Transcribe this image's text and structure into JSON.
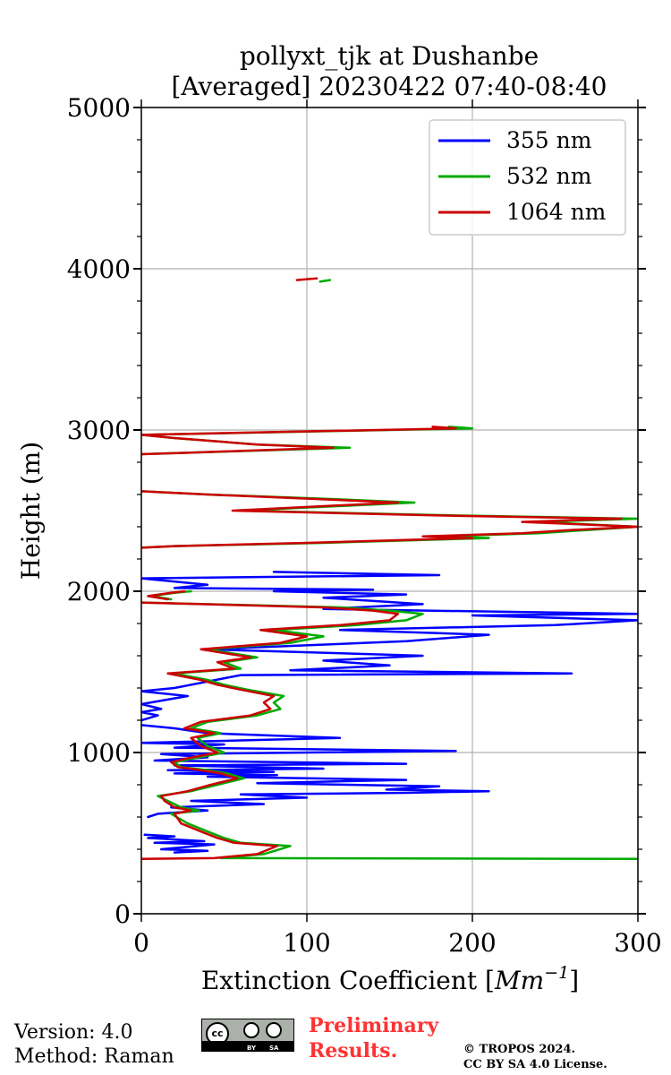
{
  "chart_data": {
    "type": "line",
    "title_line1": "pollyxt_tjk at Dushanbe",
    "title_line2": "[Averaged] 20230422 07:40-08:40",
    "xlabel_main": "Extinction Coefficient [",
    "xlabel_unit": "Mm",
    "xlabel_exp": "−1",
    "xlabel_end": "]",
    "ylabel": "Height (m)",
    "xlim": [
      0,
      300
    ],
    "ylim": [
      0,
      5000
    ],
    "xticks": [
      "0",
      "100",
      "200",
      "300"
    ],
    "yticks": [
      "0",
      "1000",
      "2000",
      "3000",
      "4000",
      "5000"
    ],
    "grid": true,
    "legend_position": "top-right",
    "series": [
      {
        "name": "355 nm",
        "color": "#0000ff",
        "segments": [
          [
            [
              20,
              380
            ],
            [
              40,
              390
            ],
            [
              12,
              400
            ],
            [
              44,
              430
            ],
            [
              8,
              440
            ],
            [
              38,
              450
            ],
            [
              4,
              470
            ],
            [
              20,
              480
            ],
            [
              2,
              490
            ]
          ],
          [
            [
              4,
              600
            ],
            [
              10,
              620
            ],
            [
              40,
              640
            ],
            [
              18,
              660
            ],
            [
              74,
              680
            ],
            [
              30,
              700
            ],
            [
              100,
              720
            ],
            [
              60,
              740
            ],
            [
              160,
              750
            ],
            [
              210,
              760
            ],
            [
              148,
              770
            ],
            [
              180,
              790
            ],
            [
              70,
              810
            ],
            [
              160,
              830
            ],
            [
              40,
              850
            ],
            [
              82,
              860
            ],
            [
              20,
              870
            ],
            [
              80,
              880
            ],
            [
              16,
              890
            ],
            [
              110,
              900
            ],
            [
              20,
              920
            ],
            [
              160,
              930
            ],
            [
              8,
              950
            ],
            [
              40,
              970
            ],
            [
              12,
              990
            ],
            [
              190,
              1010
            ],
            [
              20,
              1030
            ],
            [
              50,
              1050
            ],
            [
              0,
              1060
            ],
            [
              120,
              1090
            ],
            [
              40,
              1120
            ],
            [
              20,
              1150
            ],
            [
              0,
              1170
            ]
          ],
          [
            [
              0,
              1200
            ],
            [
              10,
              1230
            ],
            [
              0,
              1250
            ],
            [
              12,
              1270
            ],
            [
              0,
              1300
            ],
            [
              28,
              1350
            ],
            [
              0,
              1380
            ],
            [
              20,
              1400
            ],
            [
              60,
              1480
            ],
            [
              260,
              1490
            ],
            [
              90,
              1510
            ],
            [
              150,
              1540
            ],
            [
              110,
              1570
            ],
            [
              170,
              1600
            ],
            [
              40,
              1640
            ],
            [
              160,
              1690
            ],
            [
              210,
              1730
            ],
            [
              120,
              1760
            ],
            [
              250,
              1790
            ],
            [
              300,
              1820
            ],
            [
              200,
              1850
            ],
            [
              300,
              1860
            ],
            [
              110,
              1890
            ],
            [
              170,
              1920
            ],
            [
              110,
              1960
            ],
            [
              160,
              1980
            ],
            [
              80,
              2000
            ],
            [
              140,
              2010
            ],
            [
              20,
              2020
            ],
            [
              40,
              2040
            ],
            [
              0,
              2080
            ],
            [
              180,
              2100
            ],
            [
              80,
              2120
            ]
          ]
        ]
      },
      {
        "name": "532 nm",
        "color": "#00aa00",
        "segments": [
          [
            [
              108,
              3920
            ],
            [
              114,
              3930
            ]
          ],
          [
            [
              0,
              2850
            ],
            [
              30,
              2860
            ],
            [
              126,
              2890
            ],
            [
              70,
              2910
            ],
            [
              20,
              2950
            ],
            [
              0,
              2970
            ],
            [
              200,
              3010
            ],
            [
              186,
              3020
            ]
          ],
          [
            [
              0,
              2270
            ],
            [
              20,
              2280
            ],
            [
              110,
              2300
            ],
            [
              210,
              2330
            ],
            [
              180,
              2340
            ],
            [
              240,
              2360
            ],
            [
              270,
              2380
            ],
            [
              300,
              2400
            ],
            [
              240,
              2430
            ],
            [
              300,
              2450
            ],
            [
              190,
              2470
            ],
            [
              60,
              2500
            ],
            [
              165,
              2550
            ],
            [
              120,
              2570
            ],
            [
              40,
              2600
            ],
            [
              0,
              2620
            ]
          ],
          [
            [
              18,
              1950
            ],
            [
              6,
              1970
            ],
            [
              20,
              1990
            ],
            [
              30,
              2000
            ]
          ],
          [
            [
              340,
              340
            ],
            [
              48,
              345
            ],
            [
              74,
              370
            ],
            [
              90,
              420
            ],
            [
              60,
              440
            ],
            [
              50,
              470
            ],
            [
              40,
              510
            ],
            [
              28,
              560
            ],
            [
              18,
              620
            ],
            [
              35,
              640
            ],
            [
              24,
              660
            ],
            [
              16,
              700
            ],
            [
              10,
              730
            ],
            [
              30,
              760
            ],
            [
              46,
              800
            ],
            [
              62,
              840
            ],
            [
              52,
              870
            ],
            [
              40,
              890
            ],
            [
              24,
              910
            ],
            [
              20,
              940
            ],
            [
              30,
              960
            ],
            [
              50,
              1000
            ],
            [
              40,
              1040
            ],
            [
              34,
              1090
            ],
            [
              48,
              1120
            ],
            [
              30,
              1150
            ],
            [
              40,
              1190
            ],
            [
              70,
              1230
            ],
            [
              84,
              1270
            ],
            [
              80,
              1310
            ],
            [
              86,
              1350
            ],
            [
              64,
              1390
            ],
            [
              50,
              1420
            ],
            [
              40,
              1450
            ],
            [
              20,
              1490
            ],
            [
              60,
              1520
            ],
            [
              50,
              1560
            ],
            [
              70,
              1590
            ],
            [
              40,
              1640
            ],
            [
              90,
              1680
            ],
            [
              110,
              1720
            ],
            [
              80,
              1760
            ],
            [
              130,
              1790
            ],
            [
              160,
              1820
            ],
            [
              170,
              1860
            ],
            [
              150,
              1880
            ],
            [
              120,
              1900
            ],
            [
              0,
              1930
            ]
          ]
        ]
      },
      {
        "name": "1064 nm",
        "color": "#cc0000",
        "segments": [
          [
            [
              94,
              3930
            ],
            [
              106,
              3940
            ]
          ],
          [
            [
              0,
              2850
            ],
            [
              30,
              2860
            ],
            [
              116,
              2890
            ],
            [
              70,
              2910
            ],
            [
              20,
              2950
            ],
            [
              0,
              2970
            ],
            [
              190,
              3010
            ],
            [
              176,
              3020
            ]
          ],
          [
            [
              0,
              2270
            ],
            [
              20,
              2280
            ],
            [
              100,
              2300
            ],
            [
              200,
              2330
            ],
            [
              170,
              2340
            ],
            [
              230,
              2360
            ],
            [
              260,
              2380
            ],
            [
              300,
              2400
            ],
            [
              230,
              2430
            ],
            [
              290,
              2450
            ],
            [
              180,
              2470
            ],
            [
              55,
              2500
            ],
            [
              155,
              2550
            ],
            [
              110,
              2570
            ],
            [
              40,
              2600
            ],
            [
              0,
              2620
            ]
          ],
          [
            [
              16,
              1950
            ],
            [
              4,
              1970
            ],
            [
              18,
              1990
            ],
            [
              26,
              2000
            ]
          ],
          [
            [
              0,
              340
            ],
            [
              44,
              345
            ],
            [
              70,
              370
            ],
            [
              82,
              420
            ],
            [
              56,
              440
            ],
            [
              46,
              470
            ],
            [
              36,
              510
            ],
            [
              24,
              560
            ],
            [
              20,
              620
            ],
            [
              30,
              640
            ],
            [
              20,
              660
            ],
            [
              14,
              700
            ],
            [
              12,
              730
            ],
            [
              28,
              760
            ],
            [
              42,
              800
            ],
            [
              58,
              840
            ],
            [
              48,
              870
            ],
            [
              36,
              890
            ],
            [
              22,
              910
            ],
            [
              18,
              940
            ],
            [
              26,
              960
            ],
            [
              46,
              1000
            ],
            [
              36,
              1040
            ],
            [
              30,
              1090
            ],
            [
              44,
              1120
            ],
            [
              26,
              1150
            ],
            [
              36,
              1190
            ],
            [
              66,
              1230
            ],
            [
              78,
              1270
            ],
            [
              74,
              1310
            ],
            [
              80,
              1350
            ],
            [
              60,
              1390
            ],
            [
              46,
              1420
            ],
            [
              36,
              1450
            ],
            [
              16,
              1490
            ],
            [
              56,
              1520
            ],
            [
              46,
              1560
            ],
            [
              66,
              1590
            ],
            [
              36,
              1640
            ],
            [
              84,
              1680
            ],
            [
              100,
              1720
            ],
            [
              72,
              1760
            ],
            [
              120,
              1790
            ],
            [
              150,
              1820
            ],
            [
              155,
              1860
            ],
            [
              140,
              1880
            ],
            [
              110,
              1900
            ],
            [
              0,
              1930
            ]
          ]
        ]
      }
    ]
  },
  "footer": {
    "version": "Version: 4.0",
    "method": "Method: Raman",
    "preliminary_line1": "Preliminary",
    "preliminary_line2": "Results.",
    "copyright_line1": "© TROPOS 2024.",
    "copyright_line2": "CC BY SA 4.0 License."
  },
  "license_badge": {
    "cc": "cc",
    "by": "BY",
    "sa": "SA",
    "background": "#abb1aa"
  }
}
